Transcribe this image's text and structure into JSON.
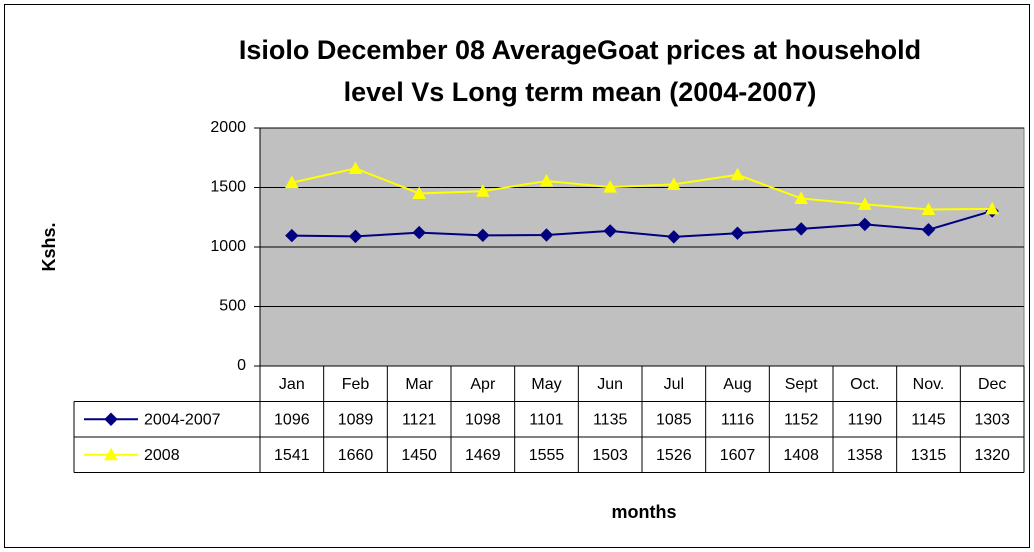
{
  "chart_data": {
    "type": "line",
    "title": [
      "Isiolo December 08 AverageGoat prices at household",
      "level Vs Long term mean (2004-2007)"
    ],
    "ylabel": "Kshs.",
    "xlabel": "months",
    "categories": [
      "Jan",
      "Feb",
      "Mar",
      "Apr",
      "May",
      "Jun",
      "Jul",
      "Aug",
      "Sept",
      "Oct.",
      "Nov.",
      "Dec"
    ],
    "series": [
      {
        "name": "2004-2007",
        "color": "#000080",
        "marker": "diamond",
        "values": [
          1096,
          1089,
          1121,
          1098,
          1101,
          1135,
          1085,
          1116,
          1152,
          1190,
          1145,
          1303
        ]
      },
      {
        "name": "2008",
        "color": "#ffff00",
        "marker": "triangle",
        "values": [
          1541,
          1660,
          1450,
          1469,
          1555,
          1503,
          1526,
          1607,
          1408,
          1358,
          1315,
          1320
        ]
      }
    ],
    "ylim": [
      0,
      2000
    ],
    "yticks": [
      0,
      500,
      1000,
      1500,
      2000
    ],
    "grid": true,
    "plot_background": "#c0c0c0",
    "data_table": true
  }
}
